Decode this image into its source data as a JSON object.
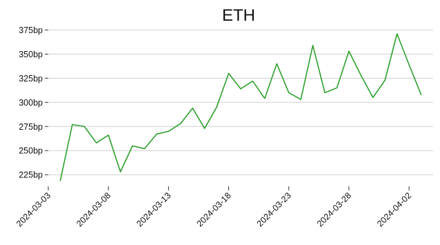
{
  "chart_data": {
    "type": "line",
    "title": "ETH",
    "xlabel": "",
    "ylabel": "",
    "grid": "horizontal",
    "ylim": [
      213,
      381
    ],
    "xlim": [
      "2024-03-03",
      "2024-04-04"
    ],
    "y_ticks": [
      {
        "value": 225,
        "label": "225bp"
      },
      {
        "value": 250,
        "label": "250bp"
      },
      {
        "value": 275,
        "label": "275bp"
      },
      {
        "value": 300,
        "label": "300bp"
      },
      {
        "value": 325,
        "label": "325bp"
      },
      {
        "value": 350,
        "label": "350bp"
      },
      {
        "value": 375,
        "label": "375bp"
      }
    ],
    "x_ticks": [
      "2024-03-03",
      "2024-03-08",
      "2024-03-13",
      "2024-03-18",
      "2024-03-23",
      "2024-03-28",
      "2024-04-02"
    ],
    "series": [
      {
        "color": "#2ca02c",
        "points": [
          [
            "2024-03-04",
            219
          ],
          [
            "2024-03-05",
            277
          ],
          [
            "2024-03-06",
            275
          ],
          [
            "2024-03-07",
            258
          ],
          [
            "2024-03-08",
            266
          ],
          [
            "2024-03-09",
            228
          ],
          [
            "2024-03-10",
            255
          ],
          [
            "2024-03-11",
            252
          ],
          [
            "2024-03-12",
            267
          ],
          [
            "2024-03-13",
            270
          ],
          [
            "2024-03-14",
            278
          ],
          [
            "2024-03-15",
            294
          ],
          [
            "2024-03-16",
            273
          ],
          [
            "2024-03-17",
            295
          ],
          [
            "2024-03-18",
            330
          ],
          [
            "2024-03-19",
            314
          ],
          [
            "2024-03-20",
            322
          ],
          [
            "2024-03-21",
            304
          ],
          [
            "2024-03-22",
            340
          ],
          [
            "2024-03-23",
            310
          ],
          [
            "2024-03-24",
            303
          ],
          [
            "2024-03-25",
            359
          ],
          [
            "2024-03-26",
            310
          ],
          [
            "2024-03-27",
            315
          ],
          [
            "2024-03-28",
            353
          ],
          [
            "2024-03-29",
            328
          ],
          [
            "2024-03-30",
            305
          ],
          [
            "2024-03-31",
            323
          ],
          [
            "2024-04-01",
            371
          ],
          [
            "2024-04-02",
            339
          ],
          [
            "2024-04-03",
            308
          ]
        ]
      }
    ]
  }
}
